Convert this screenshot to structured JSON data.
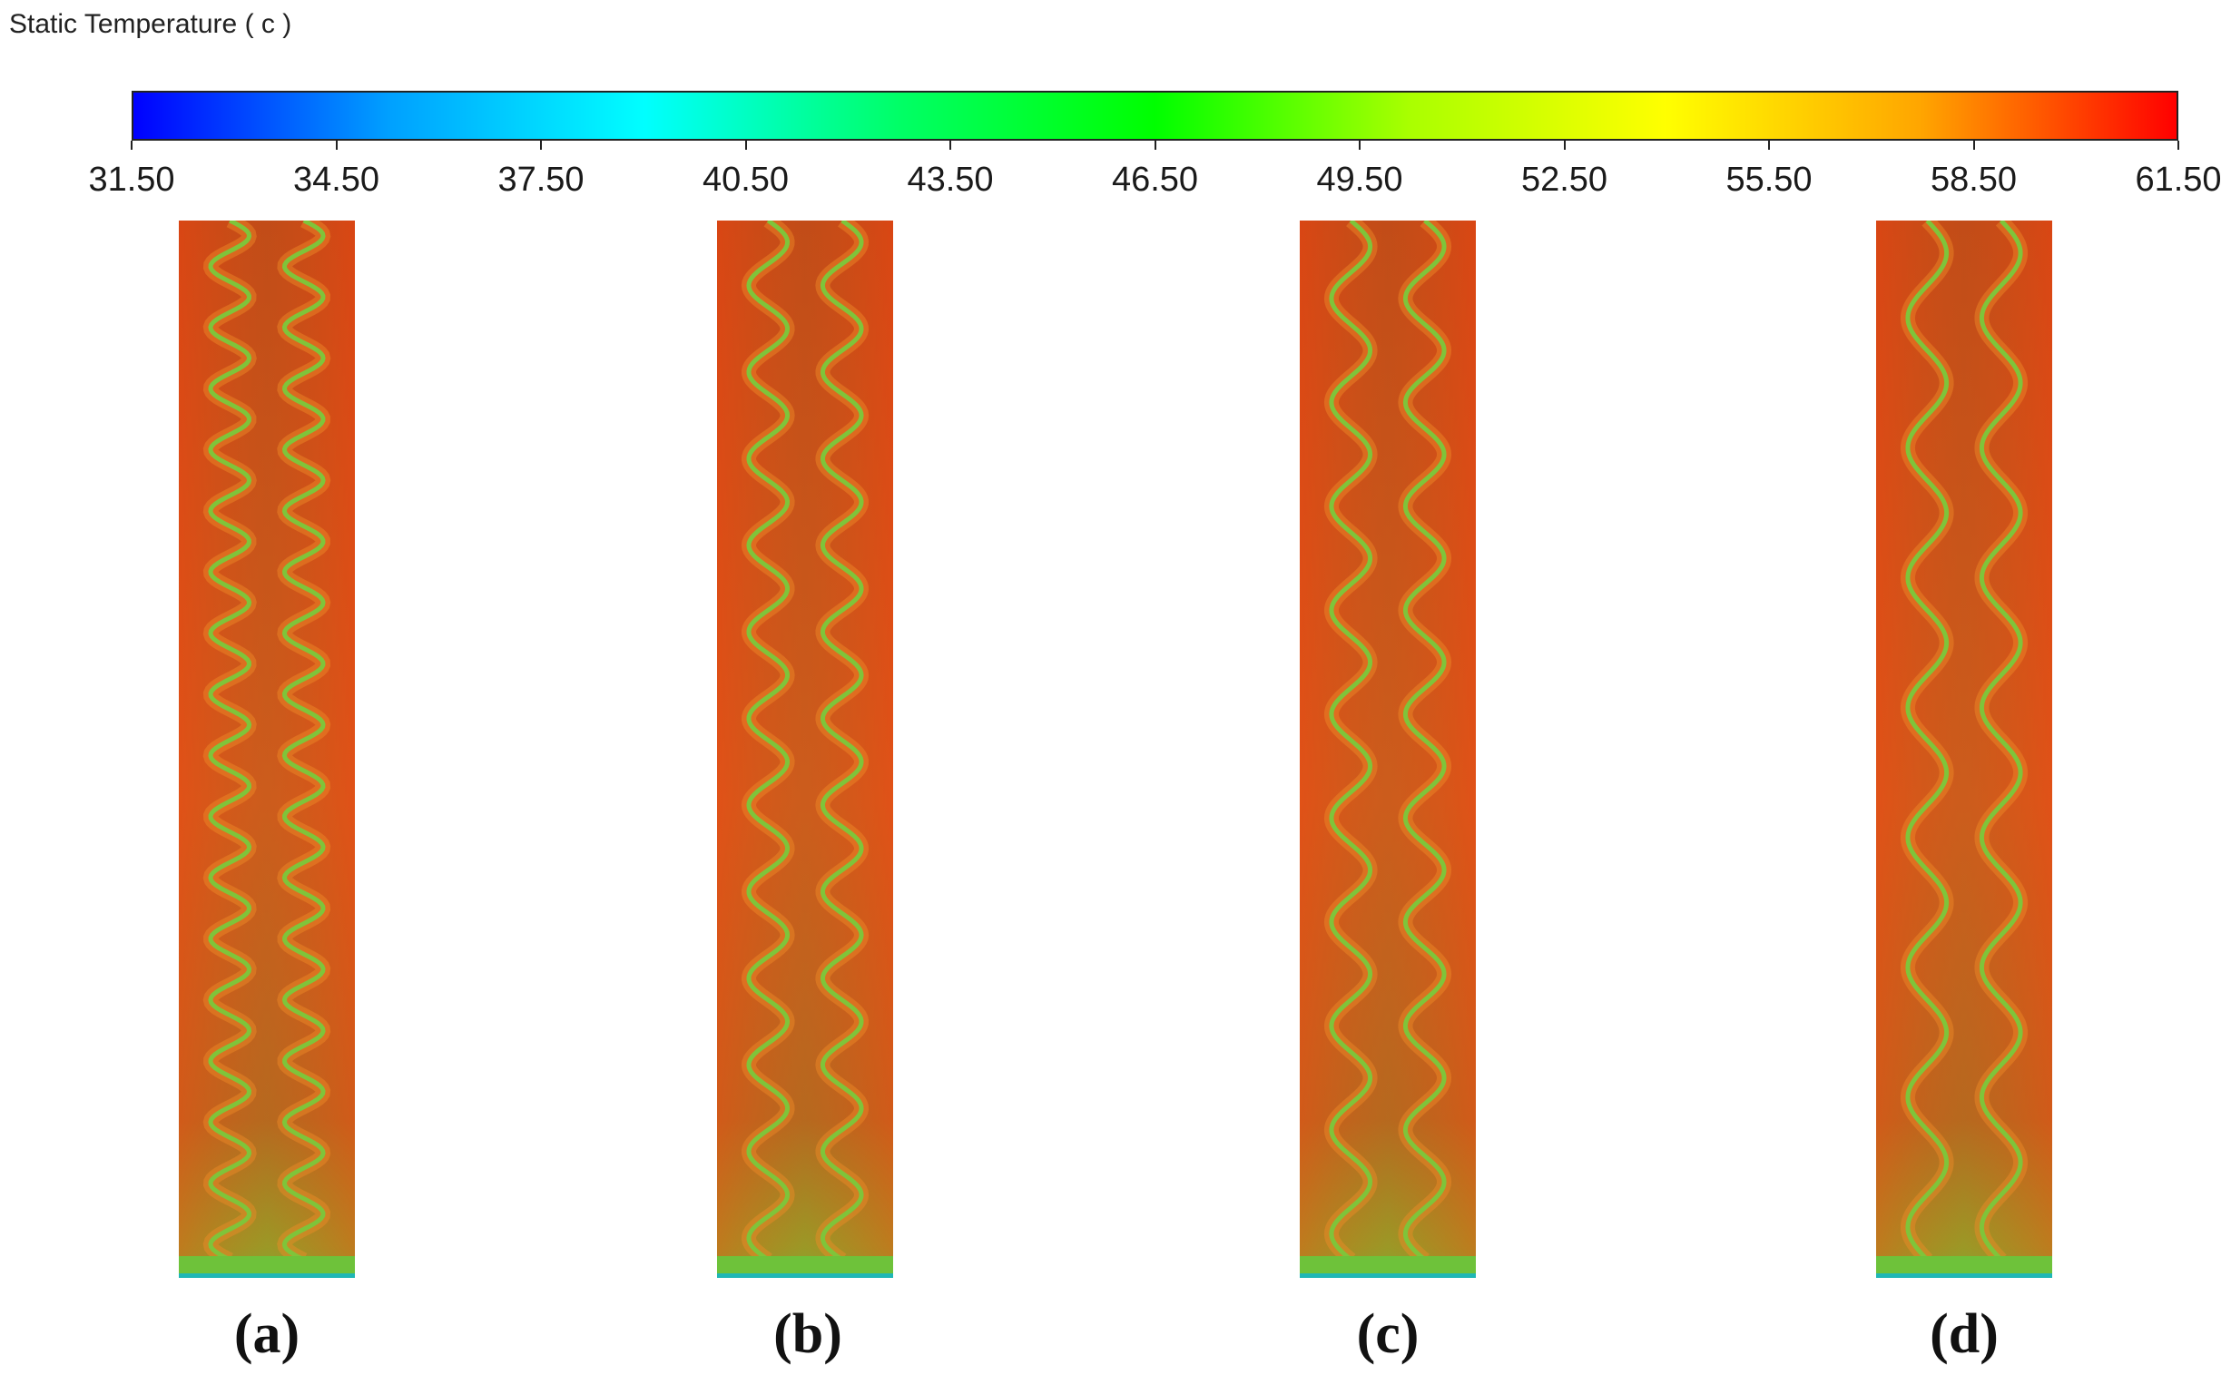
{
  "legend": {
    "title": "Static Temperature ( c )",
    "min": 31.5,
    "max": 61.5,
    "ticks": [
      "31.50",
      "34.50",
      "37.50",
      "40.50",
      "43.50",
      "46.50",
      "49.50",
      "52.50",
      "55.50",
      "58.50",
      "61.50"
    ],
    "colormap": [
      "#0000ff",
      "#00a0ff",
      "#00ffff",
      "#00ff66",
      "#00ff00",
      "#aaff00",
      "#ffff00",
      "#ffa500",
      "#ff0000"
    ]
  },
  "panels": [
    {
      "label": "(a)",
      "waves": 17
    },
    {
      "label": "(b)",
      "waves": 12
    },
    {
      "label": "(c)",
      "waves": 10
    },
    {
      "label": "(d)",
      "waves": 8
    }
  ],
  "colors": {
    "hot": "#c93a14",
    "warm": "#d9531b",
    "mid": "#b8661f",
    "channel": "#7fc43a",
    "channel_cool": "#2fae4a",
    "inlet": "#6ec23a",
    "inlet_edge": "#1fb7b5"
  }
}
